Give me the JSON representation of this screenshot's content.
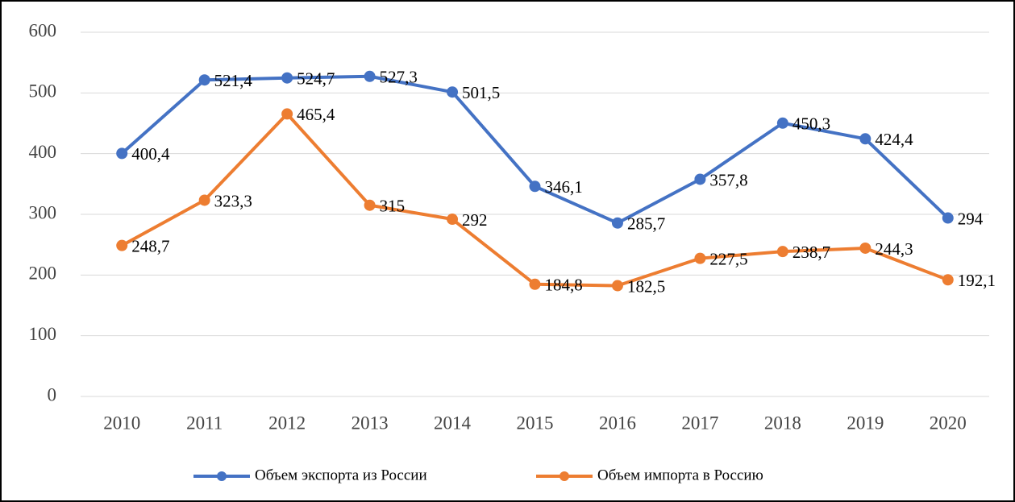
{
  "chart_data": {
    "type": "line",
    "categories": [
      "2010",
      "2011",
      "2012",
      "2013",
      "2014",
      "2015",
      "2016",
      "2017",
      "2018",
      "2019",
      "2020"
    ],
    "series": [
      {
        "name": "Объем экспорта из России",
        "color": "#4472c4",
        "values": [
          400.4,
          521.4,
          524.7,
          527.3,
          501.5,
          346.1,
          285.7,
          357.8,
          450.3,
          424.4,
          294
        ],
        "value_labels": [
          "400,4",
          "521,4",
          "524,7",
          "527,3",
          "501,5",
          "346,1",
          "285,7",
          "357,8",
          "450,3",
          "424,4",
          "294"
        ]
      },
      {
        "name": "Объем импорта в Россию",
        "color": "#ed7d31",
        "values": [
          248.7,
          323.3,
          465.4,
          315,
          292,
          184.8,
          182.5,
          227.5,
          238.7,
          244.3,
          192.1
        ],
        "value_labels": [
          "248,7",
          "323,3",
          "465,4",
          "315",
          "292",
          "184,8",
          "182,5",
          "227,5",
          "238,7",
          "244,3",
          "192,1"
        ]
      }
    ],
    "ylim": [
      0,
      600
    ],
    "yticks": [
      0,
      100,
      200,
      300,
      400,
      500,
      600
    ],
    "grid": true,
    "legend": "bottom"
  }
}
